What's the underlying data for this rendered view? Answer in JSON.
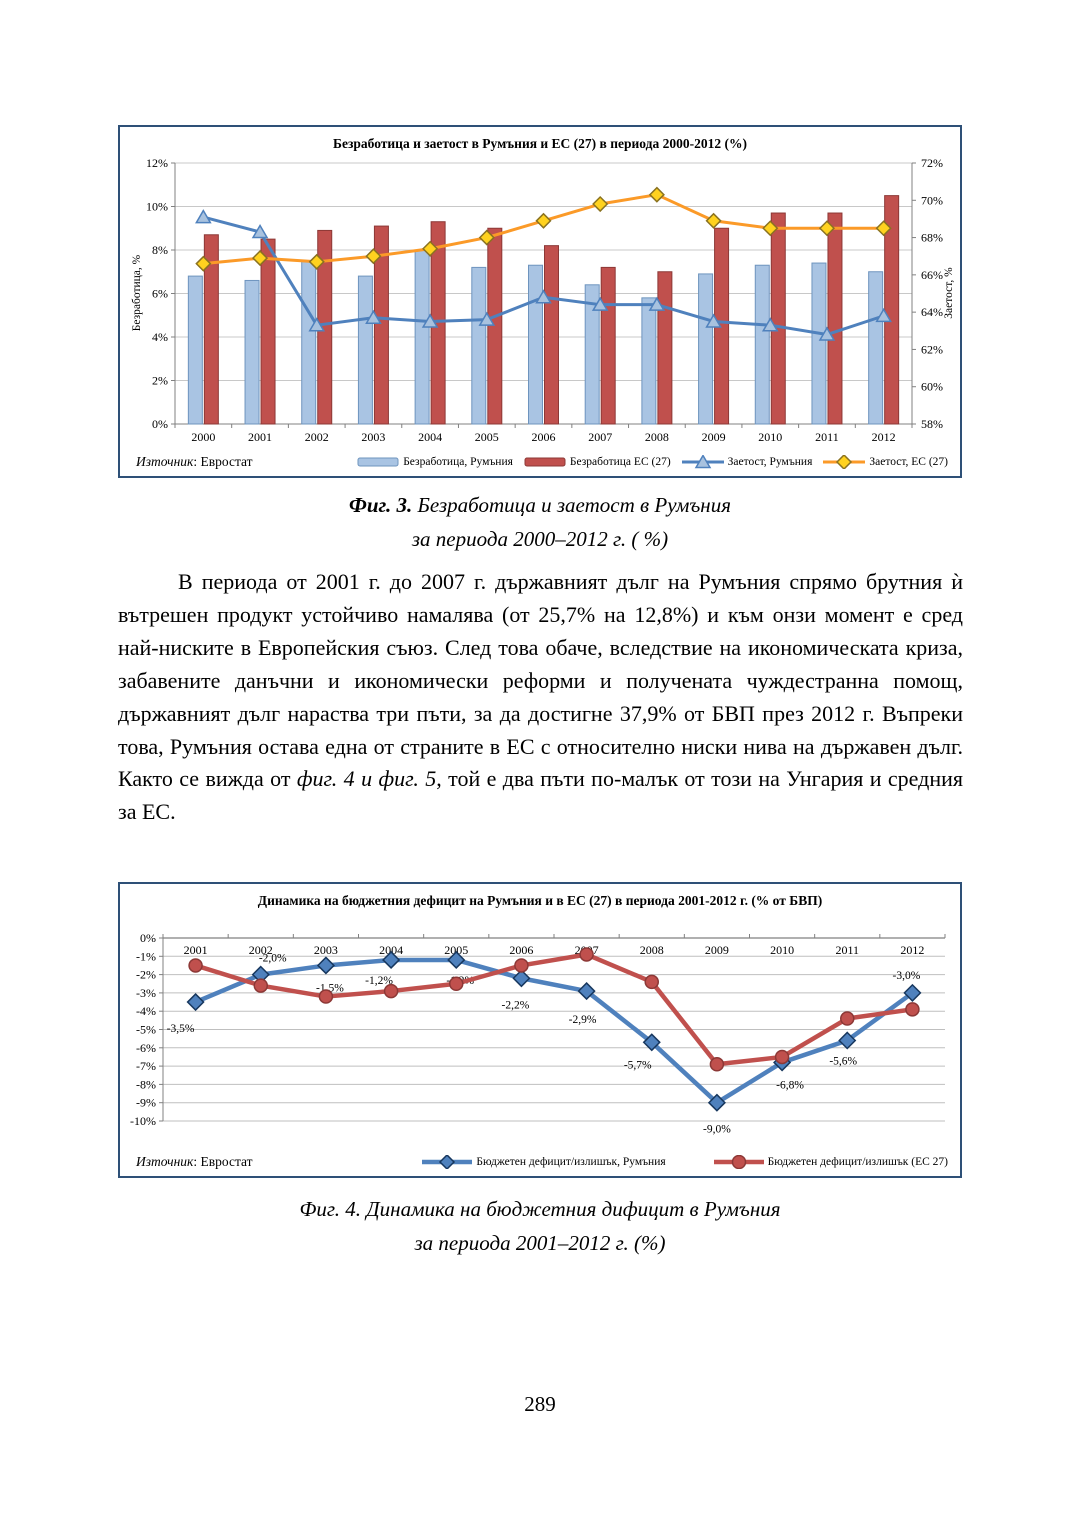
{
  "page": {
    "number": "289"
  },
  "figure3": {
    "caption_prefix": "Фиг. 3.",
    "caption_title": "Безработица и заетост в Румъния",
    "caption_line2": "за периода 2000–2012 г. ( %)"
  },
  "figure4": {
    "caption_prefix": "Фиг. 4.",
    "caption_title": "Динамика на бюджетния дифицит в Румъния",
    "caption_line2": "за периода 2001–2012 г. (%)"
  },
  "paragraph": {
    "before": "В периода от 2001 г. до 2007 г. държавният дълг на Румъния спрямо брутния ѝ вътрешен продукт устойчиво намалява (от 25,7% на 12,8%) и към онзи момент е сред най-ниските в Европейския съюз. След това обаче, вследствие на икономическата криза, забавените данъчни и икономически реформи и получената чуждестранна помощ, държавният дълг нараства три пъти, за да достигне 37,9% от БВП през 2012 г. Въпреки това, Румъния остава една от страните в ЕС с относително ниски нива на държавен дълг. Както се вижда от ",
    "italic": "фиг. 4 и фиг. 5",
    "after": ", той е два пъти по-малък от този на Унгария и средния за ЕС."
  },
  "chart_data": [
    {
      "type": "bar",
      "subtype": "combo-bar-line-dual-axis",
      "title": "Безработица и заетост в Румъния и ЕС (27) в периода 2000-2012 (%)",
      "categories": [
        "2000",
        "2001",
        "2002",
        "2003",
        "2004",
        "2005",
        "2006",
        "2007",
        "2008",
        "2009",
        "2010",
        "2011",
        "2012"
      ],
      "left_axis": {
        "label": "Безработица, %",
        "min": 0,
        "max": 12,
        "step": 2,
        "tick_suffix": "%"
      },
      "right_axis": {
        "label": "Заетост, %",
        "min": 58,
        "max": 72,
        "step": 2,
        "tick_suffix": "%"
      },
      "grid": true,
      "legend_position": "bottom",
      "source_label": "Източник",
      "source_value": ": Евростат",
      "series": [
        {
          "name": "Безработица, Румъния",
          "type": "bar",
          "axis": "left",
          "color": "#A9C4E3",
          "border": "#6E94BE",
          "values": [
            6.8,
            6.6,
            7.5,
            6.8,
            8.0,
            7.2,
            7.3,
            6.4,
            5.8,
            6.9,
            7.3,
            7.4,
            7.0
          ]
        },
        {
          "name": "Безработица ЕС (27)",
          "type": "bar",
          "axis": "left",
          "color": "#C0504D",
          "border": "#8C3836",
          "values": [
            8.7,
            8.5,
            8.9,
            9.1,
            9.3,
            9.0,
            8.2,
            7.2,
            7.0,
            9.0,
            9.7,
            9.7,
            10.5
          ]
        },
        {
          "name": "Заетост, Румъния",
          "type": "line",
          "axis": "right",
          "color": "#4F81BD",
          "marker": "triangle",
          "marker_color": "#A8C2DF",
          "marker_border": "#4F81BD",
          "values": [
            69.1,
            68.3,
            63.3,
            63.7,
            63.5,
            63.6,
            64.8,
            64.4,
            64.4,
            63.5,
            63.3,
            62.8,
            63.8
          ]
        },
        {
          "name": "Заетост, ЕС (27)",
          "type": "line",
          "axis": "right",
          "color": "#FB9A28",
          "marker": "diamond",
          "marker_color": "#FFD21F",
          "marker_border": "#8A7220",
          "values": [
            66.6,
            66.9,
            66.7,
            67.0,
            67.4,
            68.0,
            68.9,
            69.8,
            70.3,
            68.9,
            68.5,
            68.5,
            68.5
          ]
        }
      ]
    },
    {
      "type": "line",
      "title": "Динамика на бюджетния дефицит на Румъния и в ЕС (27) в периода 2001-2012 г. (% от БВП)",
      "categories": [
        "2001",
        "2002",
        "2003",
        "2004",
        "2005",
        "2006",
        "2007",
        "2008",
        "2009",
        "2010",
        "2011",
        "2012"
      ],
      "y_axis": {
        "min": -10,
        "max": 0,
        "step": 1,
        "tick_suffix": "%"
      },
      "grid": true,
      "legend_position": "bottom",
      "source_label": "Източник",
      "source_value": ": Евростат",
      "series": [
        {
          "name": "Бюджетен дефицит/излишък, Румъния",
          "color": "#4F81BD",
          "marker": "diamond",
          "marker_color": "#4F81BD",
          "marker_border": "#17375E",
          "values": [
            -3.5,
            -2.0,
            -1.5,
            -1.2,
            -1.2,
            -2.2,
            -2.9,
            -5.7,
            -9.0,
            -6.8,
            -5.6,
            -3.0
          ],
          "labels": [
            "-3,5%",
            "-2,0%",
            "-1,5%",
            "-1,2%",
            "-1,2%",
            "-2,2%",
            "-2,9%",
            "-5,7%",
            "-9,0%",
            "-6,8%",
            "-5,6%",
            "-3,0%"
          ],
          "label_offsets": [
            [
              -15,
              30
            ],
            [
              12,
              -13
            ],
            [
              4,
              26
            ],
            [
              -12,
              24
            ],
            [
              4,
              24
            ],
            [
              -6,
              30
            ],
            [
              -4,
              32
            ],
            [
              -14,
              26
            ],
            [
              0,
              30
            ],
            [
              8,
              26
            ],
            [
              -4,
              24
            ],
            [
              -6,
              -14
            ]
          ]
        },
        {
          "name": "Бюджетен дефицит/излишък (ЕС 27)",
          "color": "#C0504D",
          "marker": "circle",
          "marker_color": "#C0504D",
          "marker_border": "#8C3836",
          "values": [
            -1.5,
            -2.6,
            -3.2,
            -2.9,
            -2.5,
            -1.5,
            -0.9,
            -2.4,
            -6.9,
            -6.5,
            -4.4,
            -3.9
          ]
        }
      ]
    }
  ]
}
